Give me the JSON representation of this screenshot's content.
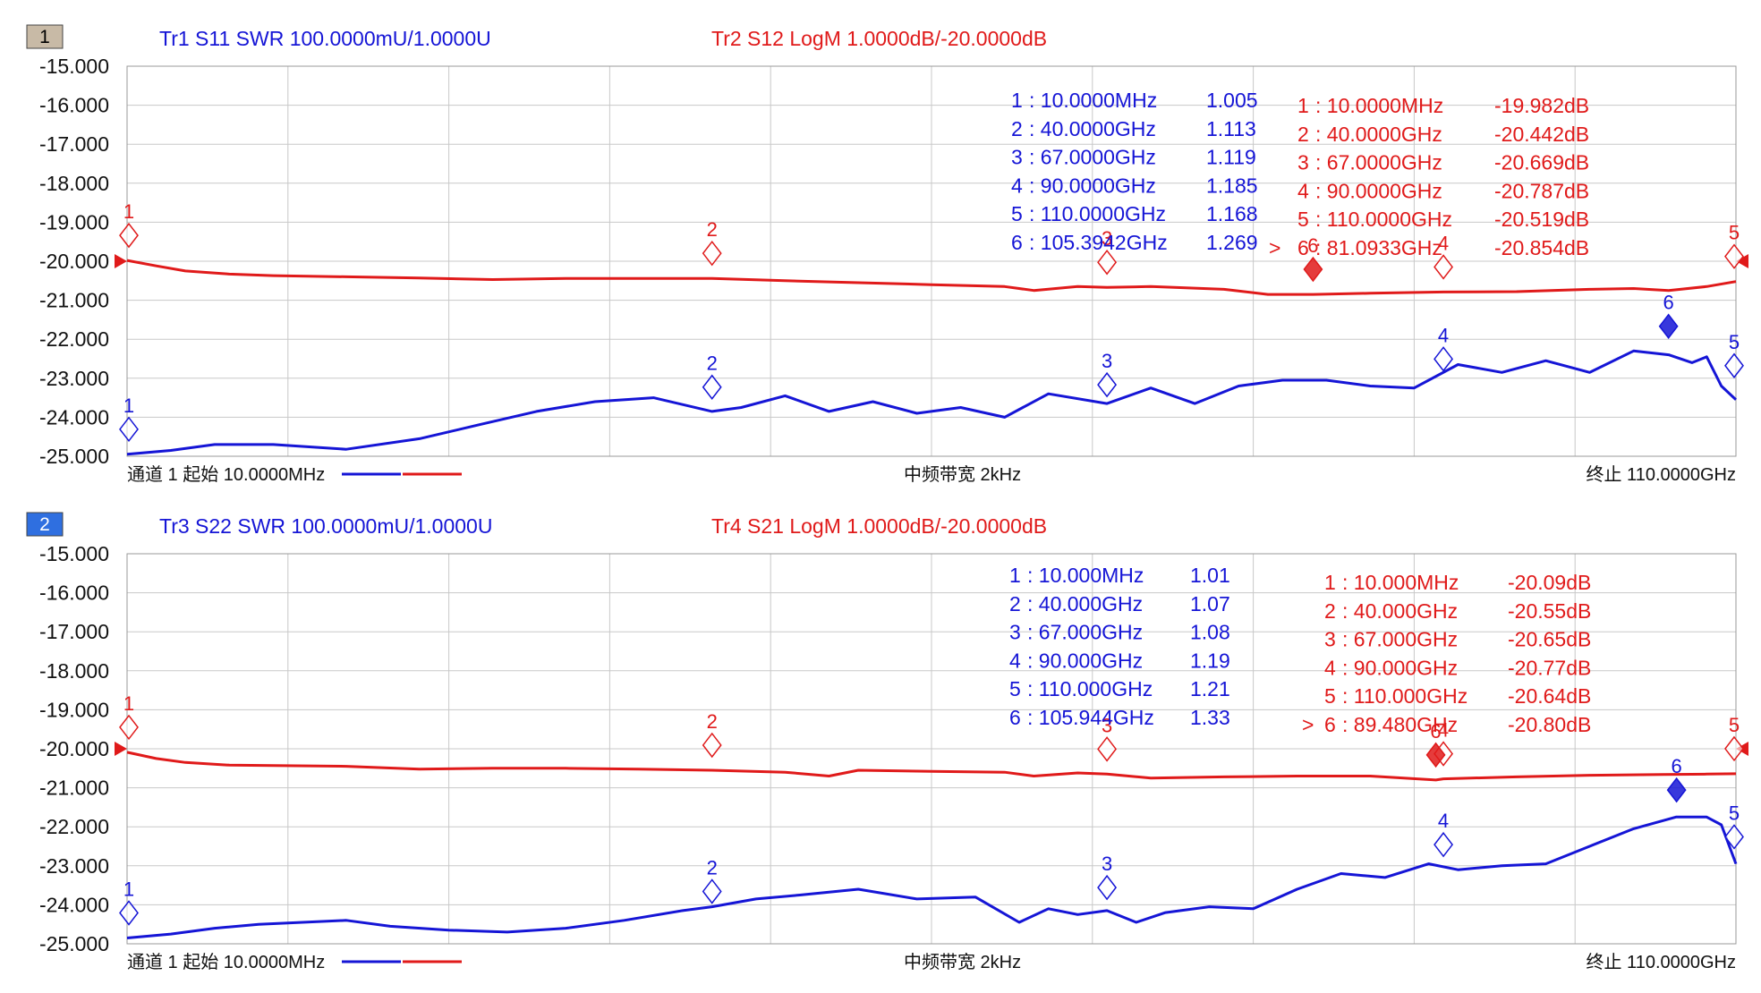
{
  "chart_data": [
    {
      "type": "line",
      "channel_badge": "1",
      "channel_badge_color": "#c8baa6",
      "trace_left": {
        "label": "Tr1 S11 SWR 100.0000mU/1.0000U",
        "color": "#1515d6"
      },
      "trace_right": {
        "label": "Tr2 S12 LogM 1.0000dB/-20.0000dB",
        "color": "#e01a1a"
      },
      "y_ticks": [
        "-15.000",
        "-16.000",
        "-17.000",
        "-18.000",
        "-19.000",
        "-20.000",
        "-21.000",
        "-22.000",
        "-23.000",
        "-24.000",
        "-25.000"
      ],
      "ylim": [
        -25,
        -15
      ],
      "xlim_ghz": [
        0.01,
        110
      ],
      "grid": true,
      "footer": {
        "start": "通道 1 起始 10.0000MHz",
        "ifbw": "中频带宽 2kHz",
        "stop": "终止 110.0000GHz"
      },
      "series": [
        {
          "name": "Tr2 S12",
          "color": "#e01a1a",
          "x": [
            0.01,
            2,
            4,
            7,
            10,
            15,
            20,
            25,
            30,
            35,
            40,
            45,
            50,
            55,
            60,
            62,
            65,
            67,
            70,
            75,
            78,
            81.09,
            85,
            90,
            95,
            100,
            103,
            105.4,
            108,
            110
          ],
          "y": [
            -19.98,
            -20.12,
            -20.25,
            -20.33,
            -20.37,
            -20.4,
            -20.43,
            -20.47,
            -20.44,
            -20.44,
            -20.44,
            -20.5,
            -20.55,
            -20.6,
            -20.65,
            -20.75,
            -20.65,
            -20.67,
            -20.65,
            -20.72,
            -20.85,
            -20.85,
            -20.82,
            -20.79,
            -20.78,
            -20.72,
            -20.7,
            -20.75,
            -20.65,
            -20.52
          ]
        },
        {
          "name": "Tr1 S11",
          "color": "#1515d6",
          "x": [
            0.01,
            3,
            6,
            10,
            15,
            20,
            24,
            28,
            32,
            36,
            40,
            42,
            45,
            48,
            51,
            54,
            57,
            60,
            63,
            67,
            70,
            73,
            76,
            79,
            82,
            85,
            88,
            91,
            94,
            97,
            100,
            103,
            105.4,
            107,
            108,
            109,
            110
          ],
          "y": [
            -24.95,
            -24.85,
            -24.7,
            -24.7,
            -24.82,
            -24.55,
            -24.2,
            -23.85,
            -23.6,
            -23.5,
            -23.85,
            -23.75,
            -23.45,
            -23.85,
            -23.6,
            -23.9,
            -23.75,
            -24.0,
            -23.4,
            -23.65,
            -23.25,
            -23.65,
            -23.2,
            -23.05,
            -23.05,
            -23.2,
            -23.25,
            -22.65,
            -22.85,
            -22.55,
            -22.85,
            -22.3,
            -22.4,
            -22.6,
            -22.45,
            -23.2,
            -23.55
          ]
        }
      ],
      "markers_left": [
        {
          "n": "1",
          "freq": ": 10.0000MHz",
          "value": "1.005",
          "x": 0.01,
          "y": -24.95
        },
        {
          "n": "2",
          "freq": ": 40.0000GHz",
          "value": "1.113",
          "x": 40,
          "y": -23.87
        },
        {
          "n": "3",
          "freq": ": 67.0000GHz",
          "value": "1.119",
          "x": 67,
          "y": -23.81
        },
        {
          "n": "4",
          "freq": ": 90.0000GHz",
          "value": "1.185",
          "x": 90,
          "y": -23.15
        },
        {
          "n": "5",
          "freq": ": 110.0000GHz",
          "value": "1.168",
          "x": 110,
          "y": -23.32
        },
        {
          "n": "6",
          "freq": ": 105.3942GHz",
          "value": "1.269",
          "x": 105.39,
          "y": -22.31,
          "active": true
        }
      ],
      "markers_right": [
        {
          "n": "1",
          "prefix": "",
          "freq": ": 10.0000MHz",
          "value": "-19.982dB",
          "x": 0.01,
          "y": -19.98
        },
        {
          "n": "2",
          "prefix": "",
          "freq": ": 40.0000GHz",
          "value": "-20.442dB",
          "x": 40,
          "y": -20.44
        },
        {
          "n": "3",
          "prefix": "",
          "freq": ": 67.0000GHz",
          "value": "-20.669dB",
          "x": 67,
          "y": -20.67
        },
        {
          "n": "4",
          "prefix": "",
          "freq": ": 90.0000GHz",
          "value": "-20.787dB",
          "x": 90,
          "y": -20.79
        },
        {
          "n": "5",
          "prefix": "",
          "freq": ": 110.0000GHz",
          "value": "-20.519dB",
          "x": 110,
          "y": -20.52
        },
        {
          "n": "6",
          "prefix": ">",
          "freq": ": 81.0933GHz",
          "value": "-20.854dB",
          "x": 81.09,
          "y": -20.85,
          "active": true
        }
      ]
    },
    {
      "type": "line",
      "channel_badge": "2",
      "channel_badge_color": "#2f6fe0",
      "trace_left": {
        "label": "Tr3 S22 SWR 100.0000mU/1.0000U",
        "color": "#1515d6"
      },
      "trace_right": {
        "label": "Tr4 S21 LogM 1.0000dB/-20.0000dB",
        "color": "#e01a1a"
      },
      "y_ticks": [
        "-15.000",
        "-16.000",
        "-17.000",
        "-18.000",
        "-19.000",
        "-20.000",
        "-21.000",
        "-22.000",
        "-23.000",
        "-24.000",
        "-25.000"
      ],
      "ylim": [
        -25,
        -15
      ],
      "xlim_ghz": [
        0.01,
        110
      ],
      "grid": true,
      "footer": {
        "start": "通道 1 起始 10.0000MHz",
        "ifbw": "中频带宽 2kHz",
        "stop": "终止 110.0000GHz"
      },
      "series": [
        {
          "name": "Tr4 S21",
          "color": "#e01a1a",
          "x": [
            0.01,
            2,
            4,
            7,
            10,
            15,
            20,
            25,
            30,
            35,
            40,
            45,
            48,
            50,
            55,
            60,
            62,
            65,
            67,
            70,
            75,
            80,
            85,
            89.48,
            90,
            95,
            100,
            105,
            108,
            110
          ],
          "y": [
            -20.09,
            -20.25,
            -20.35,
            -20.42,
            -20.43,
            -20.45,
            -20.52,
            -20.5,
            -20.5,
            -20.52,
            -20.55,
            -20.6,
            -20.7,
            -20.55,
            -20.58,
            -20.6,
            -20.7,
            -20.62,
            -20.65,
            -20.75,
            -20.72,
            -20.7,
            -20.7,
            -20.8,
            -20.77,
            -20.72,
            -20.68,
            -20.66,
            -20.65,
            -20.64
          ]
        },
        {
          "name": "Tr3 S22",
          "color": "#1515d6",
          "x": [
            0.01,
            3,
            6,
            9,
            12,
            15,
            18,
            22,
            26,
            30,
            34,
            38,
            40,
            43,
            46,
            50,
            54,
            58,
            61,
            63,
            65,
            67,
            69,
            71,
            74,
            77,
            80,
            83,
            86,
            89,
            91,
            94,
            97,
            100,
            103,
            105.9,
            108,
            109,
            110
          ],
          "y": [
            -24.85,
            -24.75,
            -24.6,
            -24.5,
            -24.45,
            -24.4,
            -24.55,
            -24.65,
            -24.7,
            -24.6,
            -24.4,
            -24.15,
            -24.05,
            -23.85,
            -23.75,
            -23.6,
            -23.85,
            -23.8,
            -24.45,
            -24.1,
            -24.25,
            -24.15,
            -24.45,
            -24.2,
            -24.05,
            -24.1,
            -23.6,
            -23.2,
            -23.3,
            -22.95,
            -23.1,
            -23.0,
            -22.95,
            -22.5,
            -22.05,
            -21.75,
            -21.75,
            -21.95,
            -22.95
          ]
        }
      ],
      "markers_left": [
        {
          "n": "1",
          "freq": ": 10.000MHz",
          "value": "1.01",
          "x": 0.01,
          "y": -24.85
        },
        {
          "n": "2",
          "freq": ": 40.000GHz",
          "value": "1.07",
          "x": 40,
          "y": -24.3
        },
        {
          "n": "3",
          "freq": ": 67.000GHz",
          "value": "1.08",
          "x": 67,
          "y": -24.2
        },
        {
          "n": "4",
          "freq": ": 90.000GHz",
          "value": "1.19",
          "x": 90,
          "y": -23.1
        },
        {
          "n": "5",
          "freq": ": 110.000GHz",
          "value": "1.21",
          "x": 110,
          "y": -22.9
        },
        {
          "n": "6",
          "freq": ": 105.944GHz",
          "value": "1.33",
          "x": 105.94,
          "y": -21.7,
          "active": true
        }
      ],
      "markers_right": [
        {
          "n": "1",
          "prefix": "",
          "freq": ": 10.000MHz",
          "value": "-20.09dB",
          "x": 0.01,
          "y": -20.09
        },
        {
          "n": "2",
          "prefix": "",
          "freq": ": 40.000GHz",
          "value": "-20.55dB",
          "x": 40,
          "y": -20.55
        },
        {
          "n": "3",
          "prefix": "",
          "freq": ": 67.000GHz",
          "value": "-20.65dB",
          "x": 67,
          "y": -20.65
        },
        {
          "n": "4",
          "prefix": "",
          "freq": ": 90.000GHz",
          "value": "-20.77dB",
          "x": 90,
          "y": -20.77
        },
        {
          "n": "5",
          "prefix": "",
          "freq": ": 110.000GHz",
          "value": "-20.64dB",
          "x": 110,
          "y": -20.64
        },
        {
          "n": "6",
          "prefix": ">",
          "freq": ": 89.480GHz",
          "value": "-20.80dB",
          "x": 89.48,
          "y": -20.8,
          "active": true
        }
      ]
    }
  ]
}
